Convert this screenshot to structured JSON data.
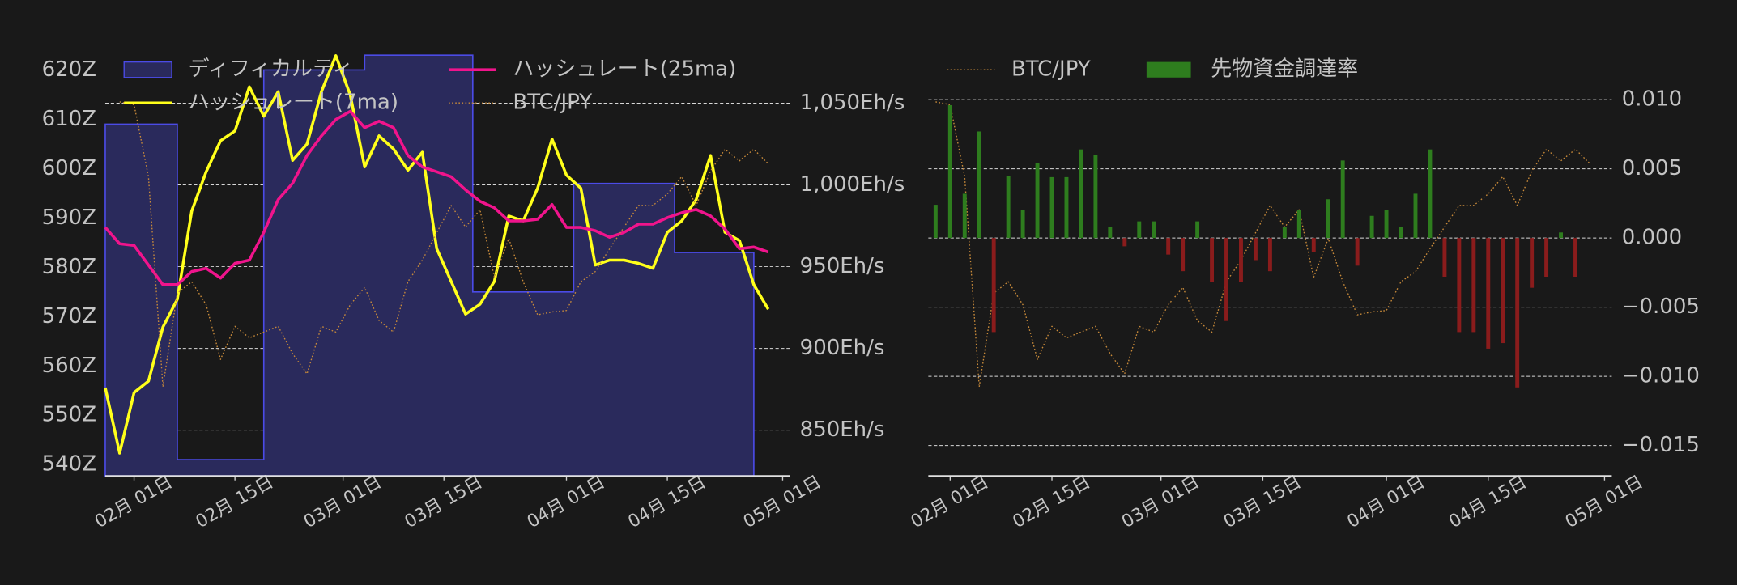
{
  "chart_data": [
    {
      "type": "line",
      "x": [
        "01-28",
        "01-30",
        "02-01",
        "02-03",
        "02-05",
        "02-07",
        "02-09",
        "02-11",
        "02-13",
        "02-15",
        "02-17",
        "02-19",
        "02-21",
        "02-23",
        "02-25",
        "02-27",
        "02-29",
        "03-02",
        "03-04",
        "03-06",
        "03-08",
        "03-10",
        "03-12",
        "03-14",
        "03-16",
        "03-18",
        "03-20",
        "03-22",
        "03-24",
        "03-26",
        "03-28",
        "03-30",
        "04-01",
        "04-03",
        "04-05",
        "04-07",
        "04-09",
        "04-11",
        "04-13",
        "04-15",
        "04-17",
        "04-19",
        "04-21",
        "04-23",
        "04-25",
        "04-27",
        "04-29"
      ],
      "xlim": [
        "01-28",
        "05-02"
      ],
      "xticks": [
        {
          "value": "02-01",
          "label": "02月 01日"
        },
        {
          "value": "02-15",
          "label": "02月 15日"
        },
        {
          "value": "03-01",
          "label": "03月 01日"
        },
        {
          "value": "03-15",
          "label": "03月 15日"
        },
        {
          "value": "04-01",
          "label": "04月 01日"
        },
        {
          "value": "04-15",
          "label": "04月 15日"
        },
        {
          "value": "05-01",
          "label": "05月 01日"
        }
      ],
      "ylim": [
        537.7,
        625.2
      ],
      "yticks": [
        {
          "value": 540,
          "label": "540Z"
        },
        {
          "value": 550,
          "label": "550Z"
        },
        {
          "value": 560,
          "label": "560Z"
        },
        {
          "value": 570,
          "label": "570Z"
        },
        {
          "value": 580,
          "label": "580Z"
        },
        {
          "value": 590,
          "label": "590Z"
        },
        {
          "value": 600,
          "label": "600Z"
        },
        {
          "value": 610,
          "label": "610Z"
        },
        {
          "value": 620,
          "label": "620Z"
        }
      ],
      "y2lim": [
        822,
        1086
      ],
      "y2ticks": [
        {
          "value": 850,
          "label": "850Eh/s"
        },
        {
          "value": 900,
          "label": "900Eh/s"
        },
        {
          "value": 950,
          "label": "950Eh/s"
        },
        {
          "value": 1000,
          "label": "1,000Eh/s"
        },
        {
          "value": 1050,
          "label": "1,050Eh/s"
        }
      ],
      "y3lim": [
        8000000,
        11000000
      ],
      "grid": true,
      "grid_axis": "y2",
      "legend": "upper left",
      "legend_ncol": 2,
      "series": [
        {
          "name": "ディフィカルティ",
          "kind": "step",
          "color": "#2a2a5c",
          "edge_color": "#4b4be6",
          "axis": "y",
          "x": [
            "01-28",
            "02-07",
            "02-19",
            "03-04",
            "03-19",
            "04-02",
            "04-16",
            "04-27"
          ],
          "values": [
            609,
            541,
            620,
            623,
            575,
            597,
            583,
            583
          ]
        },
        {
          "name": "ハッシュレート(7ma)",
          "kind": "line",
          "color": "#ffff1a",
          "axis": "y2",
          "values": [
            876,
            836,
            873,
            880,
            913,
            930,
            984,
            1008,
            1027,
            1033,
            1060,
            1042,
            1057,
            1015,
            1025,
            1057,
            1079,
            1055,
            1011,
            1030,
            1022,
            1009,
            1020,
            961,
            941,
            921,
            927,
            941,
            981,
            978,
            998,
            1028,
            1006,
            998,
            951,
            954,
            954,
            952,
            949,
            971,
            978,
            991,
            1018,
            971,
            966,
            939,
            924
          ]
        },
        {
          "name": "ハッシュレート(25ma)",
          "kind": "line",
          "color": "#f0148c",
          "axis": "y2",
          "values": [
            974,
            964,
            963,
            951,
            939,
            939,
            947,
            949,
            943,
            952,
            954,
            971,
            991,
            1001,
            1018,
            1030,
            1040,
            1045,
            1035,
            1039,
            1035,
            1018,
            1011,
            1008,
            1005,
            997,
            990,
            986,
            978,
            978,
            979,
            988,
            974,
            974,
            972,
            968,
            971,
            976,
            976,
            980,
            983,
            985,
            981,
            973,
            961,
            962,
            959
          ]
        },
        {
          "name": "BTC/JPY",
          "kind": "line",
          "linestyle": "dotted",
          "color": "#c88a3a",
          "axis": "y3",
          "values": [
            null,
            10600000,
            10580000,
            10080000,
            8620000,
            9270000,
            9350000,
            9190000,
            8810000,
            9040000,
            8960000,
            9000000,
            9040000,
            8850000,
            8710000,
            9040000,
            9000000,
            9190000,
            9310000,
            9080000,
            9000000,
            9350000,
            9500000,
            9690000,
            9880000,
            9730000,
            9850000,
            9380000,
            9650000,
            9350000,
            9120000,
            9140000,
            9150000,
            9350000,
            9420000,
            9580000,
            9730000,
            9880000,
            9880000,
            9960000,
            10080000,
            9880000,
            10120000,
            10270000,
            10190000,
            10270000,
            10170000
          ]
        }
      ]
    },
    {
      "type": "bar",
      "x": [
        "01-28",
        "01-30",
        "02-01",
        "02-03",
        "02-05",
        "02-07",
        "02-09",
        "02-11",
        "02-13",
        "02-15",
        "02-17",
        "02-19",
        "02-21",
        "02-23",
        "02-25",
        "02-27",
        "02-29",
        "03-02",
        "03-04",
        "03-06",
        "03-08",
        "03-10",
        "03-12",
        "03-14",
        "03-16",
        "03-18",
        "03-20",
        "03-22",
        "03-24",
        "03-26",
        "03-28",
        "03-30",
        "04-01",
        "04-03",
        "04-05",
        "04-07",
        "04-09",
        "04-11",
        "04-13",
        "04-15",
        "04-17",
        "04-19",
        "04-21",
        "04-23",
        "04-25",
        "04-27",
        "04-29"
      ],
      "xlim": [
        "01-29",
        "05-02"
      ],
      "xticks": [
        {
          "value": "02-01",
          "label": "02月 01日"
        },
        {
          "value": "02-15",
          "label": "02月 15日"
        },
        {
          "value": "03-01",
          "label": "03月 01日"
        },
        {
          "value": "03-15",
          "label": "03月 15日"
        },
        {
          "value": "04-01",
          "label": "04月 01日"
        },
        {
          "value": "04-15",
          "label": "04月 15日"
        },
        {
          "value": "05-01",
          "label": "05月 01日"
        }
      ],
      "y2lim": [
        -0.0172,
        0.014
      ],
      "y2ticks": [
        {
          "value": -0.015,
          "label": "−0.015"
        },
        {
          "value": -0.01,
          "label": "−0.010"
        },
        {
          "value": -0.005,
          "label": "−0.005"
        },
        {
          "value": 0,
          "label": "0.000"
        },
        0.005,
        {
          "value": 0.01,
          "label": "0.010"
        }
      ],
      "y3lim": [
        8000000,
        11000000
      ],
      "grid": true,
      "grid_axis": "y2",
      "legend": "upper left",
      "legend_ncol": 2,
      "series": [
        {
          "name": "BTC/JPY",
          "kind": "line",
          "linestyle": "dotted",
          "color": "#c88a3a",
          "axis": "y3",
          "values": [
            null,
            10600000,
            10580000,
            10080000,
            8620000,
            9270000,
            9350000,
            9190000,
            8810000,
            9040000,
            8960000,
            9000000,
            9040000,
            8850000,
            8710000,
            9040000,
            9000000,
            9190000,
            9310000,
            9080000,
            9000000,
            9350000,
            9500000,
            9690000,
            9880000,
            9730000,
            9850000,
            9380000,
            9650000,
            9350000,
            9120000,
            9140000,
            9150000,
            9350000,
            9420000,
            9580000,
            9730000,
            9880000,
            9880000,
            9960000,
            10080000,
            9880000,
            10120000,
            10270000,
            10190000,
            10270000,
            10170000
          ]
        },
        {
          "name": "先物資金調達率",
          "kind": "bar",
          "color": "#2e7d1e",
          "negative_color": "#8a1c1c",
          "axis": "y2",
          "values": [
            null,
            0.0024,
            0.0096,
            0.0032,
            0.0077,
            -0.0068,
            0.0045,
            0.002,
            0.0054,
            0.0044,
            0.0044,
            0.0064,
            0.006,
            0.0008,
            -0.0006,
            0.0012,
            0.0012,
            -0.0012,
            -0.0024,
            0.0012,
            -0.0032,
            -0.006,
            -0.0032,
            -0.0016,
            -0.0024,
            0.0008,
            0.002,
            -0.001,
            0.0028,
            0.0056,
            -0.002,
            0.0016,
            0.002,
            0.0008,
            0.0032,
            0.0064,
            -0.0028,
            -0.0068,
            -0.0068,
            -0.008,
            -0.0076,
            -0.0108,
            -0.0036,
            -0.0028,
            0.0004,
            -0.0028,
            null
          ]
        }
      ]
    }
  ]
}
